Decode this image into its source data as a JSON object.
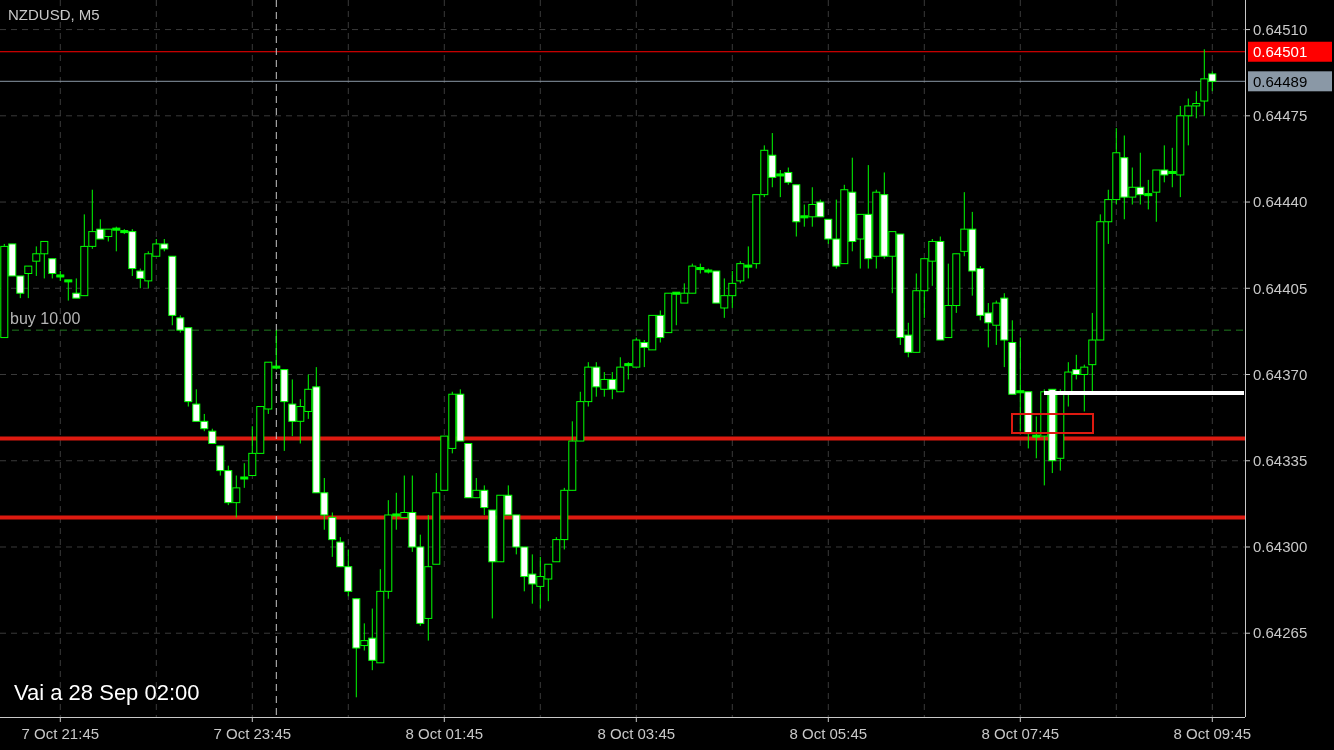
{
  "chart_data": {
    "type": "candlestick",
    "title": "NZDUSD, M5",
    "color": "#00ff00",
    "grid": true,
    "annotations": [
      "Vai a 28 Sep 02:00"
    ],
    "categories": [
      null,
      null,
      null,
      null,
      null,
      null,
      null,
      "7 Oct 21:45",
      null,
      null,
      null,
      null,
      null,
      null,
      null,
      null,
      null,
      null,
      null,
      null,
      null,
      null,
      null,
      null,
      null,
      null,
      null,
      null,
      null,
      null,
      null,
      "7 Oct 23:45",
      null,
      null,
      null,
      null,
      null,
      null,
      null,
      null,
      null,
      null,
      null,
      null,
      null,
      null,
      null,
      null,
      null,
      null,
      null,
      null,
      null,
      null,
      null,
      "8 Oct 01:45",
      null,
      null,
      null,
      null,
      null,
      null,
      null,
      null,
      null,
      null,
      null,
      null,
      null,
      null,
      null,
      null,
      null,
      null,
      null,
      null,
      null,
      null,
      null,
      "8 Oct 03:45",
      null,
      null,
      null,
      null,
      null,
      null,
      null,
      null,
      null,
      null,
      null,
      null,
      null,
      null,
      null,
      null,
      null,
      null,
      null,
      null,
      null,
      null,
      null,
      "8 Oct 05:45",
      null,
      null,
      null,
      null,
      null,
      null,
      null,
      null,
      null,
      null,
      null,
      null,
      null,
      null,
      null,
      null,
      null,
      null,
      null,
      null,
      null,
      null,
      null,
      "8 Oct 07:45",
      null,
      null,
      null,
      null,
      null,
      null,
      null,
      null,
      null,
      null,
      null,
      null,
      null,
      null,
      null,
      null,
      null,
      null,
      null,
      null,
      null,
      null,
      null,
      "8 Oct 09:45"
    ],
    "ylim": [
      0.64231,
      0.64522
    ],
    "yticks": [
      {
        "value": 0.64265,
        "label": "0.64265"
      },
      {
        "value": 0.643,
        "label": "0.64300"
      },
      {
        "value": 0.64335,
        "label": "0.64335"
      },
      {
        "value": 0.6437,
        "label": "0.64370"
      },
      {
        "value": 0.64405,
        "label": "0.64405"
      },
      {
        "value": 0.6444,
        "label": "0.64440"
      },
      {
        "value": 0.64475,
        "label": "0.64475"
      },
      {
        "value": 0.6451,
        "label": "0.64510"
      }
    ],
    "ref_lines": [
      {
        "axis": "y",
        "value": 0.64501,
        "label": "0.64501",
        "color": "#ff0000"
      },
      {
        "axis": "y",
        "value": 0.64489,
        "label": "0.64489",
        "color": "#8a98a6"
      },
      {
        "axis": "y",
        "value": 0.64388,
        "label": "buy 10.00",
        "color": "#1f7a1f",
        "line_style": "dashed"
      },
      {
        "axis": "y",
        "value": 0.64344,
        "color": "#dd1a10"
      },
      {
        "axis": "y",
        "value": 0.64312,
        "color": "#dd1a10"
      }
    ],
    "ohlc": [
      [
        0.64385,
        0.64423,
        0.64385,
        0.64422
      ],
      [
        0.64423,
        0.64423,
        0.6441,
        0.6441
      ],
      [
        0.6441,
        0.6441,
        0.64401,
        0.64403
      ],
      [
        0.64411,
        0.64414,
        0.64401,
        0.64414
      ],
      [
        0.64416,
        0.64422,
        0.6441,
        0.64419
      ],
      [
        0.64419,
        0.64424,
        0.64409,
        0.64424
      ],
      [
        0.64417,
        0.64417,
        0.64409,
        0.64411
      ],
      [
        0.6441,
        0.64412,
        0.64408,
        0.6441
      ],
      [
        0.64408,
        0.64408,
        0.644,
        0.64408
      ],
      [
        0.64403,
        0.64409,
        0.64401,
        0.64401
      ],
      [
        0.64402,
        0.64435,
        0.64402,
        0.64422
      ],
      [
        0.64422,
        0.64445,
        0.64421,
        0.64428
      ],
      [
        0.64429,
        0.64433,
        0.64425,
        0.64425
      ],
      [
        0.64426,
        0.64429,
        0.64424,
        0.64429
      ],
      [
        0.64429,
        0.6443,
        0.6442,
        0.64429
      ],
      [
        0.64428,
        0.64429,
        0.64427,
        0.64428
      ],
      [
        0.64428,
        0.64429,
        0.6441,
        0.64413
      ],
      [
        0.64412,
        0.64413,
        0.64405,
        0.64409
      ],
      [
        0.64408,
        0.6442,
        0.64405,
        0.64419
      ],
      [
        0.64418,
        0.64425,
        0.64418,
        0.64423
      ],
      [
        0.64423,
        0.64425,
        0.6442,
        0.64421
      ],
      [
        0.64418,
        0.64418,
        0.6439,
        0.64394
      ],
      [
        0.64393,
        0.64394,
        0.64387,
        0.64388
      ],
      [
        0.64389,
        0.64389,
        0.64357,
        0.64359
      ],
      [
        0.64358,
        0.64364,
        0.64351,
        0.64351
      ],
      [
        0.64351,
        0.64354,
        0.64347,
        0.64348
      ],
      [
        0.64347,
        0.64348,
        0.64342,
        0.64342
      ],
      [
        0.64341,
        0.64341,
        0.64329,
        0.64331
      ],
      [
        0.64331,
        0.64333,
        0.64317,
        0.64318
      ],
      [
        0.64318,
        0.64329,
        0.64312,
        0.64324
      ],
      [
        0.64328,
        0.64334,
        0.64324,
        0.64328
      ],
      [
        0.64329,
        0.64349,
        0.64329,
        0.64338
      ],
      [
        0.64338,
        0.64357,
        0.64338,
        0.64357
      ],
      [
        0.64356,
        0.64375,
        0.64354,
        0.64375
      ],
      [
        0.64373,
        0.64388,
        0.64372,
        0.64373
      ],
      [
        0.64372,
        0.64372,
        0.64339,
        0.64359
      ],
      [
        0.64358,
        0.64368,
        0.64345,
        0.64351
      ],
      [
        0.64351,
        0.6436,
        0.64342,
        0.64357
      ],
      [
        0.64355,
        0.6437,
        0.64352,
        0.64364
      ],
      [
        0.64365,
        0.64373,
        0.64322,
        0.64322
      ],
      [
        0.64322,
        0.64328,
        0.64307,
        0.64313
      ],
      [
        0.64312,
        0.64314,
        0.64296,
        0.64303
      ],
      [
        0.64302,
        0.64304,
        0.64292,
        0.64292
      ],
      [
        0.64292,
        0.64299,
        0.6428,
        0.64282
      ],
      [
        0.64279,
        0.64279,
        0.64239,
        0.64259
      ],
      [
        0.6426,
        0.64269,
        0.64258,
        0.64262
      ],
      [
        0.64263,
        0.64275,
        0.6425,
        0.64254
      ],
      [
        0.64253,
        0.64291,
        0.64253,
        0.64282
      ],
      [
        0.64282,
        0.64319,
        0.64279,
        0.64313
      ],
      [
        0.64313,
        0.64322,
        0.64307,
        0.64313
      ],
      [
        0.64312,
        0.64329,
        0.64312,
        0.64314
      ],
      [
        0.64314,
        0.64329,
        0.64298,
        0.643
      ],
      [
        0.643,
        0.64305,
        0.64268,
        0.64269
      ],
      [
        0.64271,
        0.64313,
        0.64262,
        0.64292
      ],
      [
        0.64293,
        0.6433,
        0.64293,
        0.64322
      ],
      [
        0.64323,
        0.64345,
        0.64323,
        0.64345
      ],
      [
        0.6434,
        0.64363,
        0.64338,
        0.64362
      ],
      [
        0.64362,
        0.64364,
        0.64343,
        0.64343
      ],
      [
        0.64342,
        0.64342,
        0.6432,
        0.6432
      ],
      [
        0.6432,
        0.64328,
        0.6432,
        0.64323
      ],
      [
        0.64323,
        0.64325,
        0.64313,
        0.64316
      ],
      [
        0.64315,
        0.64315,
        0.64271,
        0.64294
      ],
      [
        0.64294,
        0.64321,
        0.64294,
        0.64321
      ],
      [
        0.64321,
        0.64325,
        0.64313,
        0.64313
      ],
      [
        0.64313,
        0.64313,
        0.64297,
        0.643
      ],
      [
        0.643,
        0.643,
        0.64282,
        0.64288
      ],
      [
        0.64289,
        0.64297,
        0.64277,
        0.64285
      ],
      [
        0.64284,
        0.64296,
        0.64275,
        0.64288
      ],
      [
        0.64287,
        0.64293,
        0.64278,
        0.64293
      ],
      [
        0.64294,
        0.64304,
        0.64294,
        0.64303
      ],
      [
        0.64303,
        0.64324,
        0.64299,
        0.64323
      ],
      [
        0.64323,
        0.64351,
        0.64323,
        0.64343
      ],
      [
        0.64343,
        0.64363,
        0.64343,
        0.64359
      ],
      [
        0.64359,
        0.64375,
        0.64357,
        0.64373
      ],
      [
        0.64373,
        0.64375,
        0.64361,
        0.64365
      ],
      [
        0.64364,
        0.64371,
        0.64361,
        0.64368
      ],
      [
        0.64368,
        0.64371,
        0.6436,
        0.64364
      ],
      [
        0.64363,
        0.64377,
        0.64363,
        0.64373
      ],
      [
        0.64374,
        0.64375,
        0.64368,
        0.64374
      ],
      [
        0.64373,
        0.64385,
        0.64373,
        0.64384
      ],
      [
        0.64383,
        0.64384,
        0.64373,
        0.64381
      ],
      [
        0.6438,
        0.64394,
        0.6438,
        0.64394
      ],
      [
        0.64394,
        0.64396,
        0.64383,
        0.64385
      ],
      [
        0.64387,
        0.64403,
        0.64387,
        0.64403
      ],
      [
        0.64403,
        0.64403,
        0.6439,
        0.64403
      ],
      [
        0.64399,
        0.64407,
        0.64399,
        0.64403
      ],
      [
        0.64403,
        0.64415,
        0.64403,
        0.64414
      ],
      [
        0.64413,
        0.64415,
        0.64411,
        0.64413
      ],
      [
        0.64412,
        0.64413,
        0.64411,
        0.64412
      ],
      [
        0.64412,
        0.64412,
        0.64399,
        0.64399
      ],
      [
        0.64397,
        0.64409,
        0.64393,
        0.64402
      ],
      [
        0.64402,
        0.64412,
        0.64397,
        0.64407
      ],
      [
        0.64408,
        0.64416,
        0.64407,
        0.64415
      ],
      [
        0.64414,
        0.64422,
        0.64409,
        0.64414
      ],
      [
        0.64415,
        0.64443,
        0.64413,
        0.64443
      ],
      [
        0.64443,
        0.64463,
        0.64442,
        0.64461
      ],
      [
        0.64459,
        0.64468,
        0.64446,
        0.6445
      ],
      [
        0.64451,
        0.64453,
        0.64442,
        0.64451
      ],
      [
        0.64452,
        0.64454,
        0.64447,
        0.64448
      ],
      [
        0.64447,
        0.64447,
        0.64426,
        0.64432
      ],
      [
        0.64434,
        0.64439,
        0.6443,
        0.64434
      ],
      [
        0.64434,
        0.64446,
        0.6443,
        0.64439
      ],
      [
        0.6444,
        0.64441,
        0.64434,
        0.64434
      ],
      [
        0.64433,
        0.64433,
        0.64423,
        0.64425
      ],
      [
        0.64425,
        0.64441,
        0.64413,
        0.64414
      ],
      [
        0.64415,
        0.64447,
        0.64415,
        0.64445
      ],
      [
        0.64444,
        0.64458,
        0.6442,
        0.64424
      ],
      [
        0.64425,
        0.64435,
        0.64413,
        0.64435
      ],
      [
        0.64435,
        0.64455,
        0.64413,
        0.64417
      ],
      [
        0.64418,
        0.64445,
        0.64413,
        0.64444
      ],
      [
        0.64443,
        0.64452,
        0.64417,
        0.64418
      ],
      [
        0.64418,
        0.64428,
        0.64403,
        0.64428
      ],
      [
        0.64427,
        0.64427,
        0.64382,
        0.64385
      ],
      [
        0.64386,
        0.64391,
        0.64377,
        0.64379
      ],
      [
        0.64379,
        0.64411,
        0.64379,
        0.64404
      ],
      [
        0.64404,
        0.64417,
        0.64393,
        0.64417
      ],
      [
        0.64416,
        0.64425,
        0.64406,
        0.64424
      ],
      [
        0.64424,
        0.64426,
        0.64384,
        0.64384
      ],
      [
        0.64385,
        0.64415,
        0.64385,
        0.64398
      ],
      [
        0.64398,
        0.64419,
        0.64395,
        0.64419
      ],
      [
        0.6442,
        0.64444,
        0.64418,
        0.64429
      ],
      [
        0.64429,
        0.64436,
        0.64402,
        0.64412
      ],
      [
        0.64413,
        0.64414,
        0.64392,
        0.64394
      ],
      [
        0.64395,
        0.64399,
        0.64381,
        0.64391
      ],
      [
        0.6439,
        0.644,
        0.64382,
        0.64399
      ],
      [
        0.64401,
        0.64403,
        0.64373,
        0.64384
      ],
      [
        0.64383,
        0.64392,
        0.64362,
        0.64362
      ],
      [
        0.64363,
        0.64385,
        0.64347,
        0.64363
      ],
      [
        0.64363,
        0.64363,
        0.6434,
        0.64346
      ],
      [
        0.64345,
        0.64353,
        0.64336,
        0.64345
      ],
      [
        0.64345,
        0.64364,
        0.64325,
        0.64363
      ],
      [
        0.64364,
        0.64364,
        0.6433,
        0.64335
      ],
      [
        0.64336,
        0.64364,
        0.64331,
        0.64363
      ],
      [
        0.64363,
        0.64375,
        0.64357,
        0.64371
      ],
      [
        0.64372,
        0.64378,
        0.64368,
        0.6437
      ],
      [
        0.6437,
        0.64374,
        0.64355,
        0.64373
      ],
      [
        0.64374,
        0.64395,
        0.64363,
        0.64384
      ],
      [
        0.64384,
        0.64435,
        0.64384,
        0.64432
      ],
      [
        0.64432,
        0.64445,
        0.64423,
        0.64441
      ],
      [
        0.64441,
        0.6447,
        0.64439,
        0.6446
      ],
      [
        0.64458,
        0.64467,
        0.64433,
        0.64442
      ],
      [
        0.64442,
        0.64454,
        0.64439,
        0.64446
      ],
      [
        0.64446,
        0.6446,
        0.64439,
        0.64443
      ],
      [
        0.64443,
        0.64449,
        0.64437,
        0.64443
      ],
      [
        0.64444,
        0.64453,
        0.64432,
        0.64453
      ],
      [
        0.64453,
        0.64463,
        0.64448,
        0.64451
      ],
      [
        0.64452,
        0.64462,
        0.64446,
        0.64452
      ],
      [
        0.64451,
        0.64479,
        0.64442,
        0.64475
      ],
      [
        0.64475,
        0.64482,
        0.64463,
        0.64479
      ],
      [
        0.64479,
        0.64485,
        0.64474,
        0.6448
      ],
      [
        0.64481,
        0.64502,
        0.64475,
        0.6449
      ],
      [
        0.64492,
        0.64493,
        0.64485,
        0.64489
      ]
    ]
  }
}
